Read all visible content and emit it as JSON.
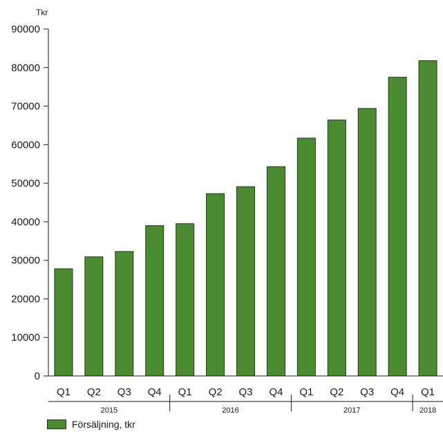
{
  "chart_data": {
    "type": "bar",
    "ylabel": "Tkr",
    "xlabel": "",
    "ylim": [
      0,
      90000
    ],
    "yticks": [
      0,
      10000,
      20000,
      30000,
      40000,
      50000,
      60000,
      70000,
      80000,
      90000
    ],
    "grid": false,
    "legend_position": "bottom-left",
    "categories": [
      "Q1",
      "Q2",
      "Q3",
      "Q4",
      "Q1",
      "Q2",
      "Q3",
      "Q4",
      "Q1",
      "Q2",
      "Q3",
      "Q4",
      "Q1"
    ],
    "groups": [
      {
        "label": "2015",
        "count": 4
      },
      {
        "label": "2016",
        "count": 4
      },
      {
        "label": "2017",
        "count": 4
      },
      {
        "label": "2018",
        "count": 1
      }
    ],
    "series": [
      {
        "name": "Försäljning, tkr",
        "color": "#4b8b32",
        "values": [
          27800,
          30900,
          32300,
          39000,
          39500,
          47300,
          49100,
          54300,
          61700,
          66400,
          69400,
          77500,
          81800
        ]
      }
    ]
  }
}
